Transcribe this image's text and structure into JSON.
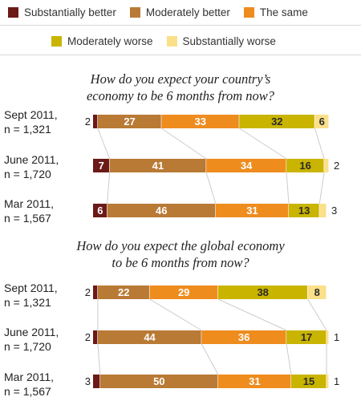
{
  "chart_data": [
    {
      "type": "bar",
      "stacked": true,
      "orientation": "horizontal",
      "title": "How do you expect your country’s economy to be 6 months from now?",
      "title_lines": [
        "How do you expect your country’s",
        "economy to be 6 months from now?"
      ],
      "categories": [
        "Sept 2011,\nn = 1,321",
        "June 2011,\nn = 1,720",
        "Mar 2011,\nn = 1,567"
      ],
      "series": [
        {
          "name": "Substantially better",
          "values": [
            2,
            7,
            6
          ]
        },
        {
          "name": "Moderately better",
          "values": [
            27,
            41,
            46
          ]
        },
        {
          "name": "The same",
          "values": [
            33,
            34,
            31
          ]
        },
        {
          "name": "Moderately worse",
          "values": [
            32,
            16,
            13
          ]
        },
        {
          "name": "Substantially worse",
          "values": [
            6,
            2,
            3
          ]
        }
      ],
      "xlim": [
        0,
        100
      ]
    },
    {
      "type": "bar",
      "stacked": true,
      "orientation": "horizontal",
      "title": "How do you expect the global economy to be 6 months from now?",
      "title_lines": [
        "How do you expect the global economy",
        "to be 6 months from now?"
      ],
      "categories": [
        "Sept 2011,\nn = 1,321",
        "June 2011,\nn = 1,720",
        "Mar 2011,\nn = 1,567"
      ],
      "series": [
        {
          "name": "Substantially better",
          "values": [
            2,
            2,
            3
          ]
        },
        {
          "name": "Moderately better",
          "values": [
            22,
            44,
            50
          ]
        },
        {
          "name": "The same",
          "values": [
            29,
            36,
            31
          ]
        },
        {
          "name": "Moderately worse",
          "values": [
            38,
            17,
            15
          ]
        },
        {
          "name": "Substantially worse",
          "values": [
            8,
            1,
            1
          ]
        }
      ],
      "xlim": [
        0,
        100
      ]
    }
  ],
  "legend": [
    {
      "label": "Substantially better",
      "color": "#6b1a17"
    },
    {
      "label": "Moderately better",
      "color": "#b97a35"
    },
    {
      "label": "The same",
      "color": "#ee8c1e"
    },
    {
      "label": "Moderately worse",
      "color": "#c9b400"
    },
    {
      "label": "Substantially worse",
      "color": "#fbe089"
    }
  ],
  "colors": {
    "connector": "#cccccc",
    "band_fill": "#efe7d6",
    "label_light": "#ffffff",
    "label_dark": "#2a2a2a"
  }
}
